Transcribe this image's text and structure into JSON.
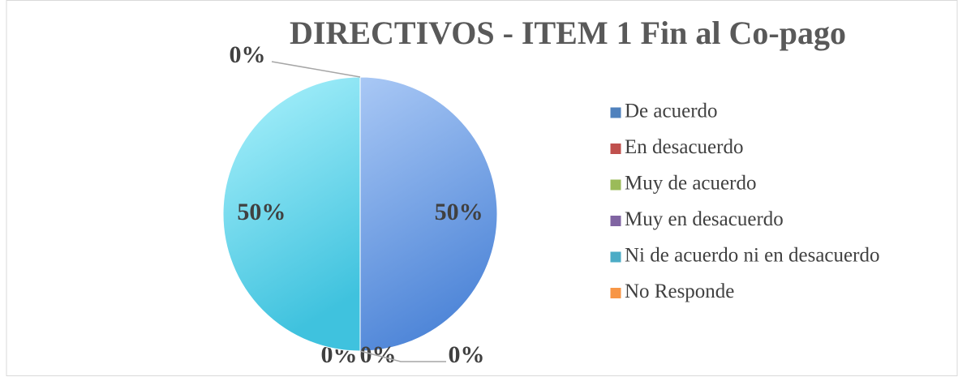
{
  "chart_data": {
    "type": "pie",
    "title": "DIRECTIVOS - ITEM 1 Fin al Co-pago",
    "categories": [
      "De acuerdo",
      "En desacuerdo",
      "Muy de acuerdo",
      "Muy en desacuerdo",
      "Ni de acuerdo ni en desacuerdo",
      "No Responde"
    ],
    "values": [
      50,
      0,
      0,
      0,
      50,
      0
    ],
    "value_labels": [
      "50%",
      "0%",
      "0%",
      "0%",
      "50%",
      "0%"
    ],
    "colors": [
      "#4f81bd",
      "#c0504d",
      "#9bbb59",
      "#8064a2",
      "#4bacc6",
      "#f79646"
    ],
    "legend": "right"
  }
}
